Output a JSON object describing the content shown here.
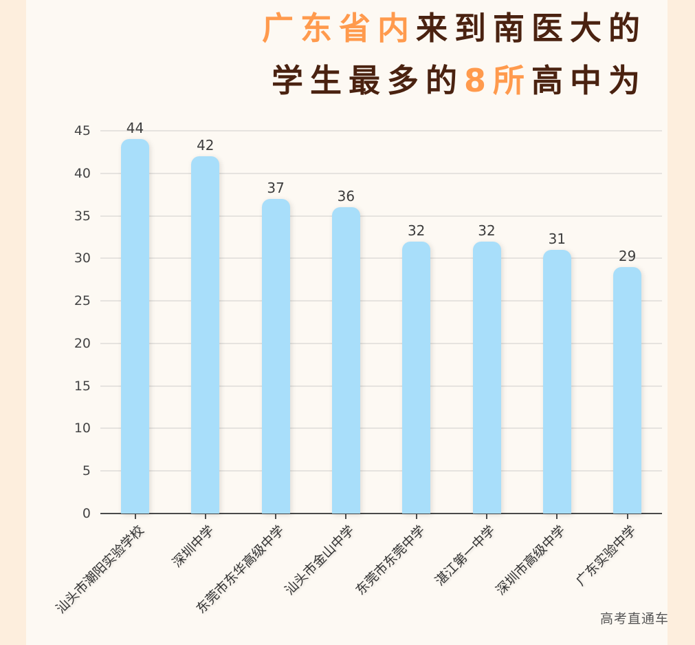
{
  "title": {
    "line1_highlight": "广东省内",
    "line1_rest": "来到南医大的",
    "line2_pre": "学生最多的",
    "line2_highlight": "8所",
    "line2_post": "高中为"
  },
  "watermark": "高考直通车",
  "colors": {
    "background_outer": "#fdeedd",
    "background_panel": "#fdf9f3",
    "title_dark": "#4a2210",
    "title_highlight": "#ff9a4d",
    "bar": "#a8defa"
  },
  "chart_data": {
    "type": "bar",
    "title": "广东省内来到南医大的学生最多的8所高中为",
    "xlabel": "",
    "ylabel": "",
    "ylim": [
      0,
      45
    ],
    "yticks": [
      0,
      5,
      10,
      15,
      20,
      25,
      30,
      35,
      40,
      45
    ],
    "grid": true,
    "legend": null,
    "categories": [
      "汕头市潮阳实验学校",
      "深圳中学",
      "东莞市东华高级中学",
      "汕头市金山中学",
      "东莞市东莞中学",
      "湛江第一中学",
      "深圳市高级中学",
      "广东实验中学"
    ],
    "values": [
      44,
      42,
      37,
      36,
      32,
      32,
      31,
      29
    ],
    "value_labels": [
      "44",
      "42",
      "37",
      "36",
      "32",
      "32",
      "31",
      "29"
    ],
    "ytick_labels": [
      "0",
      "5",
      "10",
      "15",
      "20",
      "25",
      "30",
      "35",
      "40",
      "45"
    ]
  }
}
